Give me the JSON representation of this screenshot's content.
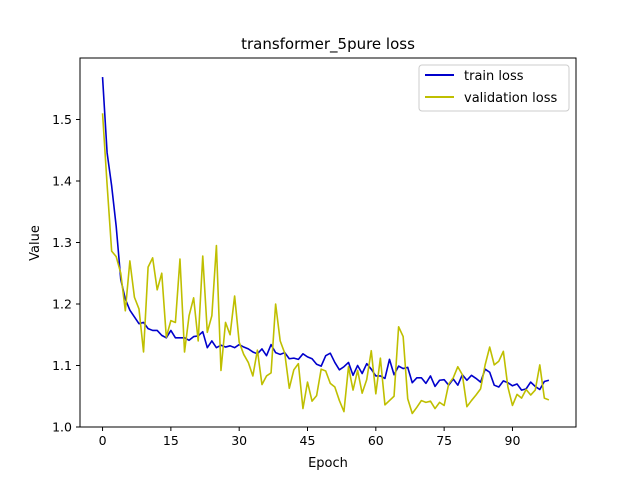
{
  "chart_data": {
    "type": "line",
    "title": "transformer_5pure loss",
    "xlabel": "Epoch",
    "ylabel": "Value",
    "xlim": [
      -4.95,
      103.95
    ],
    "ylim": [
      1.0,
      1.6
    ],
    "xticks": [
      0,
      15,
      30,
      45,
      60,
      75,
      90
    ],
    "yticks": [
      1.0,
      1.1,
      1.2,
      1.3,
      1.4,
      1.5
    ],
    "ytick_labels": [
      "1.0",
      "1.1",
      "1.2",
      "1.3",
      "1.4",
      "1.5"
    ],
    "grid": false,
    "legend_position": "top-right",
    "series": [
      {
        "name": "train loss",
        "color": "#0000cc",
        "values": [
          1.569,
          1.446,
          1.392,
          1.326,
          1.24,
          1.208,
          1.19,
          1.179,
          1.168,
          1.17,
          1.16,
          1.157,
          1.157,
          1.149,
          1.145,
          1.157,
          1.145,
          1.145,
          1.145,
          1.141,
          1.147,
          1.148,
          1.155,
          1.129,
          1.14,
          1.129,
          1.133,
          1.13,
          1.132,
          1.129,
          1.134,
          1.13,
          1.127,
          1.122,
          1.119,
          1.127,
          1.116,
          1.134,
          1.121,
          1.118,
          1.121,
          1.111,
          1.112,
          1.11,
          1.119,
          1.114,
          1.111,
          1.102,
          1.099,
          1.116,
          1.12,
          1.105,
          1.093,
          1.098,
          1.105,
          1.084,
          1.1,
          1.087,
          1.103,
          1.094,
          1.083,
          1.083,
          1.079,
          1.11,
          1.085,
          1.099,
          1.095,
          1.097,
          1.072,
          1.08,
          1.08,
          1.071,
          1.083,
          1.066,
          1.076,
          1.077,
          1.068,
          1.078,
          1.068,
          1.085,
          1.076,
          1.084,
          1.079,
          1.073,
          1.094,
          1.089,
          1.068,
          1.065,
          1.075,
          1.072,
          1.067,
          1.07,
          1.06,
          1.062,
          1.073,
          1.066,
          1.061,
          1.074,
          1.076
        ]
      },
      {
        "name": "validation loss",
        "color": "#bfbf00",
        "values": [
          1.51,
          1.394,
          1.286,
          1.277,
          1.25,
          1.189,
          1.27,
          1.211,
          1.192,
          1.122,
          1.26,
          1.275,
          1.223,
          1.25,
          1.146,
          1.173,
          1.17,
          1.273,
          1.122,
          1.181,
          1.21,
          1.14,
          1.278,
          1.154,
          1.181,
          1.295,
          1.092,
          1.17,
          1.15,
          1.213,
          1.138,
          1.118,
          1.105,
          1.083,
          1.125,
          1.069,
          1.083,
          1.088,
          1.2,
          1.14,
          1.12,
          1.063,
          1.093,
          1.103,
          1.03,
          1.073,
          1.042,
          1.051,
          1.094,
          1.091,
          1.071,
          1.065,
          1.043,
          1.025,
          1.098,
          1.06,
          1.092,
          1.055,
          1.077,
          1.124,
          1.054,
          1.112,
          1.036,
          1.043,
          1.05,
          1.163,
          1.147,
          1.046,
          1.022,
          1.032,
          1.043,
          1.04,
          1.042,
          1.03,
          1.04,
          1.035,
          1.07,
          1.08,
          1.098,
          1.085,
          1.033,
          1.043,
          1.052,
          1.062,
          1.101,
          1.13,
          1.101,
          1.107,
          1.123,
          1.065,
          1.035,
          1.053,
          1.047,
          1.061,
          1.052,
          1.06,
          1.101,
          1.047,
          1.044
        ]
      }
    ]
  }
}
